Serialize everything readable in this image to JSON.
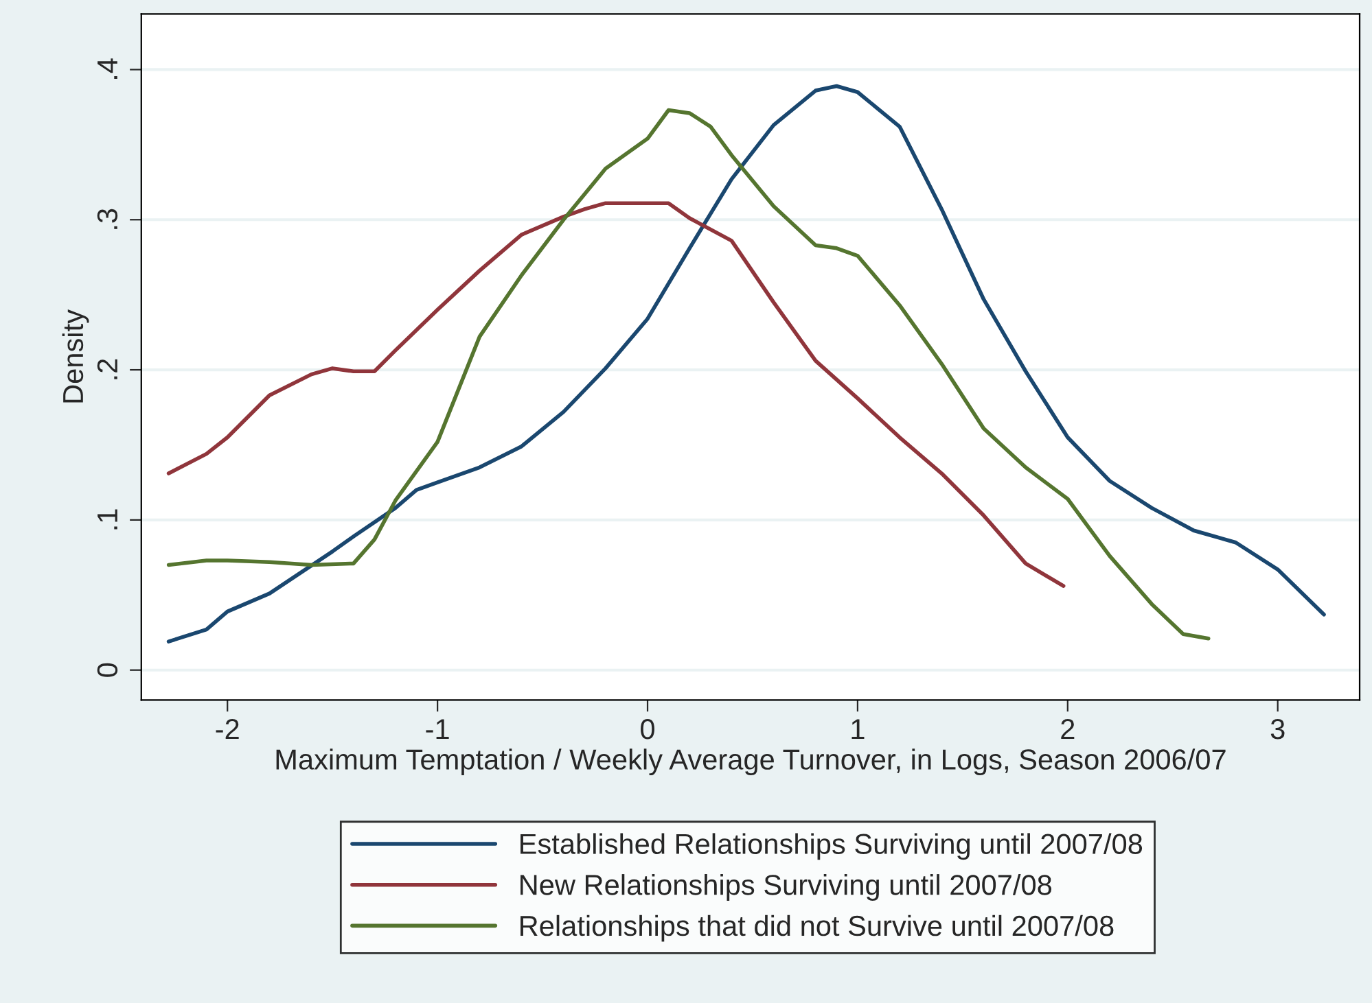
{
  "chart_data": {
    "type": "line",
    "xlabel": "Maximum Temptation / Weekly Average Turnover, in Logs, Season 2006/07",
    "ylabel": "Density",
    "xlim": [
      -2.41,
      3.39
    ],
    "ylim": [
      -0.02,
      0.437
    ],
    "xticks": [
      -2,
      -1,
      0,
      1,
      2,
      3
    ],
    "yticks": [
      0,
      {
        "value": 0.1,
        "label": ".1"
      },
      {
        "value": 0.2,
        "label": ".2"
      },
      {
        "value": 0.3,
        "label": ".3"
      },
      {
        "value": 0.4,
        "label": ".4"
      }
    ],
    "grid": "y",
    "legend": "bottom",
    "line_style": "solid",
    "series": [
      {
        "name": "Established Relationships Surviving until 2007/08",
        "color": "#1a476f",
        "x": [
          -2.28,
          -2.1,
          -2.0,
          -1.8,
          -1.5,
          -1.4,
          -1.2,
          -1.1,
          -1.0,
          -0.8,
          -0.6,
          -0.4,
          -0.2,
          0,
          0.2,
          0.4,
          0.6,
          0.8,
          0.9,
          1.0,
          1.2,
          1.4,
          1.6,
          1.8,
          2.0,
          2.2,
          2.4,
          2.6,
          2.8,
          3.0,
          3.22
        ],
        "values": [
          0.019,
          0.027,
          0.039,
          0.051,
          0.079,
          0.089,
          0.108,
          0.12,
          0.125,
          0.135,
          0.149,
          0.172,
          0.201,
          0.234,
          0.281,
          0.327,
          0.363,
          0.386,
          0.389,
          0.385,
          0.362,
          0.307,
          0.247,
          0.199,
          0.155,
          0.126,
          0.108,
          0.093,
          0.085,
          0.067,
          0.037
        ]
      },
      {
        "name": "New Relationships Surviving until 2007/08",
        "color": "#90353b",
        "x": [
          -2.28,
          -2.1,
          -2.0,
          -1.8,
          -1.6,
          -1.5,
          -1.4,
          -1.3,
          -1.2,
          -1.0,
          -0.8,
          -0.6,
          -0.4,
          -0.3,
          -0.2,
          0,
          0.1,
          0.2,
          0.4,
          0.6,
          0.8,
          1.0,
          1.2,
          1.4,
          1.6,
          1.8,
          1.98
        ],
        "values": [
          0.131,
          0.144,
          0.155,
          0.183,
          0.197,
          0.201,
          0.199,
          0.199,
          0.213,
          0.24,
          0.266,
          0.29,
          0.302,
          0.307,
          0.311,
          0.311,
          0.311,
          0.301,
          0.286,
          0.245,
          0.206,
          0.181,
          0.155,
          0.131,
          0.103,
          0.071,
          0.056
        ]
      },
      {
        "name": "Relationships that did not Survive until 2007/08",
        "color": "#55752f",
        "x": [
          -2.28,
          -2.1,
          -2.0,
          -1.8,
          -1.6,
          -1.4,
          -1.3,
          -1.2,
          -1.0,
          -0.8,
          -0.6,
          -0.4,
          -0.2,
          0,
          0.1,
          0.2,
          0.3,
          0.4,
          0.6,
          0.8,
          0.9,
          1.0,
          1.2,
          1.4,
          1.6,
          1.8,
          2.0,
          2.2,
          2.4,
          2.55,
          2.67
        ],
        "values": [
          0.07,
          0.073,
          0.073,
          0.072,
          0.07,
          0.071,
          0.087,
          0.113,
          0.152,
          0.222,
          0.263,
          0.3,
          0.334,
          0.354,
          0.373,
          0.371,
          0.362,
          0.343,
          0.309,
          0.283,
          0.281,
          0.276,
          0.243,
          0.204,
          0.161,
          0.135,
          0.114,
          0.076,
          0.044,
          0.024,
          0.021
        ]
      }
    ]
  }
}
